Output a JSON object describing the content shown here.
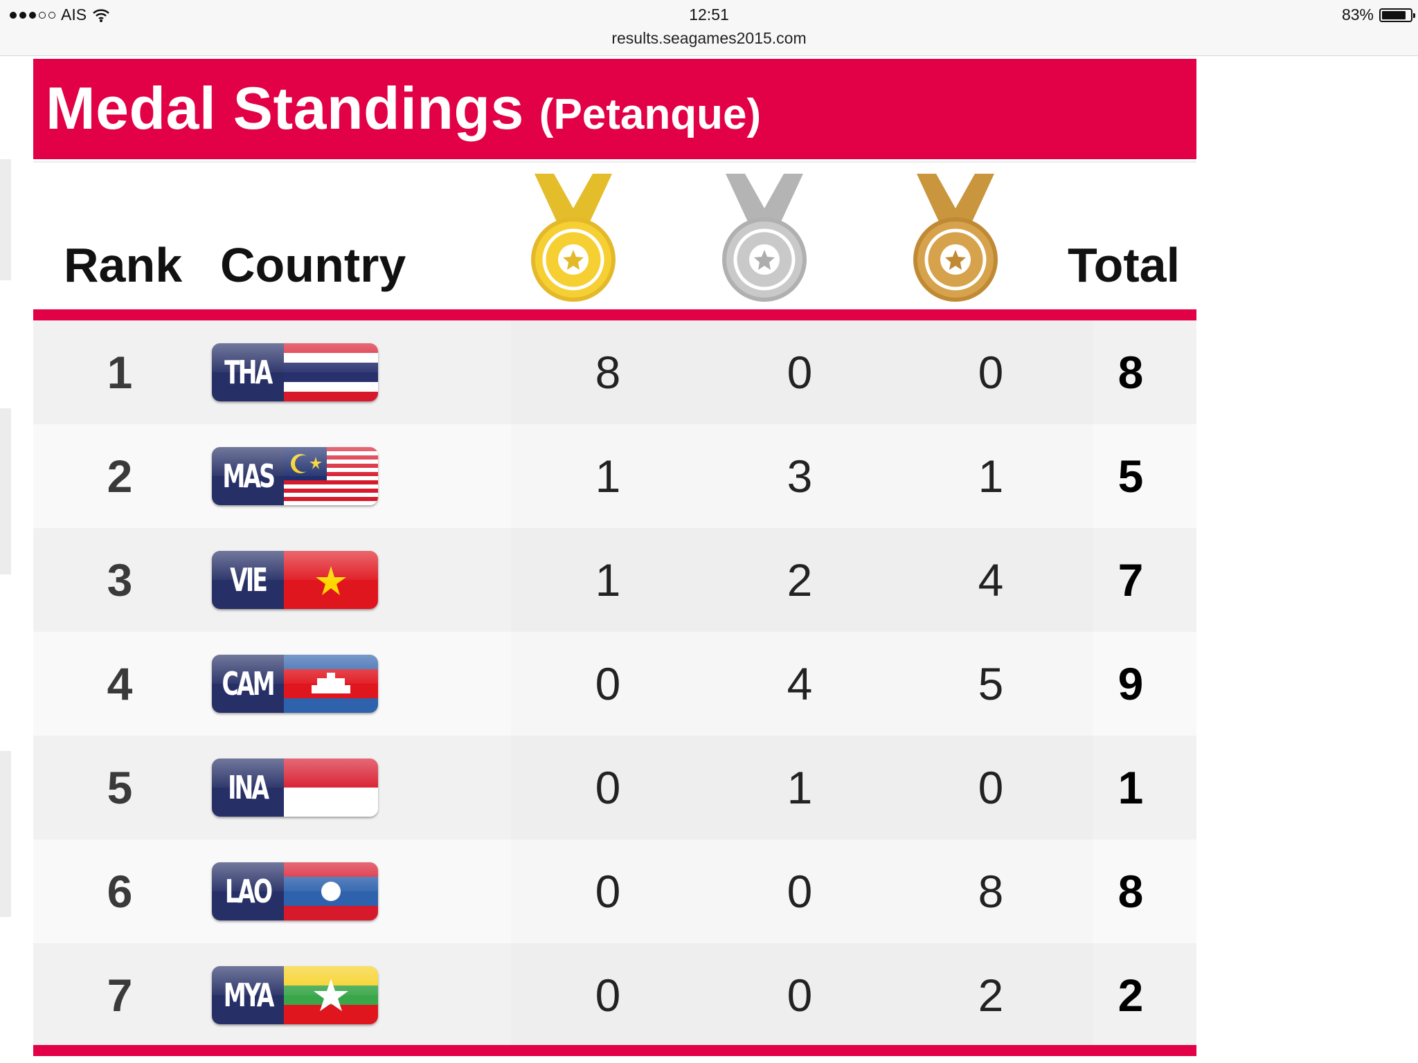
{
  "status_bar": {
    "carrier": "AIS",
    "time": "12:51",
    "battery": "83%",
    "battery_level": 0.83,
    "url": "results.seagames2015.com"
  },
  "header": {
    "title": "Medal Standings",
    "subtitle": "(Petanque)",
    "color": "#e20046"
  },
  "columns": {
    "rank": "Rank",
    "country": "Country",
    "gold_icon": "gold-medal-icon",
    "silver_icon": "silver-medal-icon",
    "bronze_icon": "bronze-medal-icon",
    "total": "Total"
  },
  "rows": [
    {
      "rank": "1",
      "code": "THA",
      "gold": "8",
      "silver": "0",
      "bronze": "0",
      "total": "8"
    },
    {
      "rank": "2",
      "code": "MAS",
      "gold": "1",
      "silver": "3",
      "bronze": "1",
      "total": "5"
    },
    {
      "rank": "3",
      "code": "VIE",
      "gold": "1",
      "silver": "2",
      "bronze": "4",
      "total": "7"
    },
    {
      "rank": "4",
      "code": "CAM",
      "gold": "0",
      "silver": "4",
      "bronze": "5",
      "total": "9"
    },
    {
      "rank": "5",
      "code": "INA",
      "gold": "0",
      "silver": "1",
      "bronze": "0",
      "total": "1"
    },
    {
      "rank": "6",
      "code": "LAO",
      "gold": "0",
      "silver": "0",
      "bronze": "8",
      "total": "8"
    },
    {
      "rank": "7",
      "code": "MYA",
      "gold": "0",
      "silver": "0",
      "bronze": "2",
      "total": "2"
    }
  ]
}
